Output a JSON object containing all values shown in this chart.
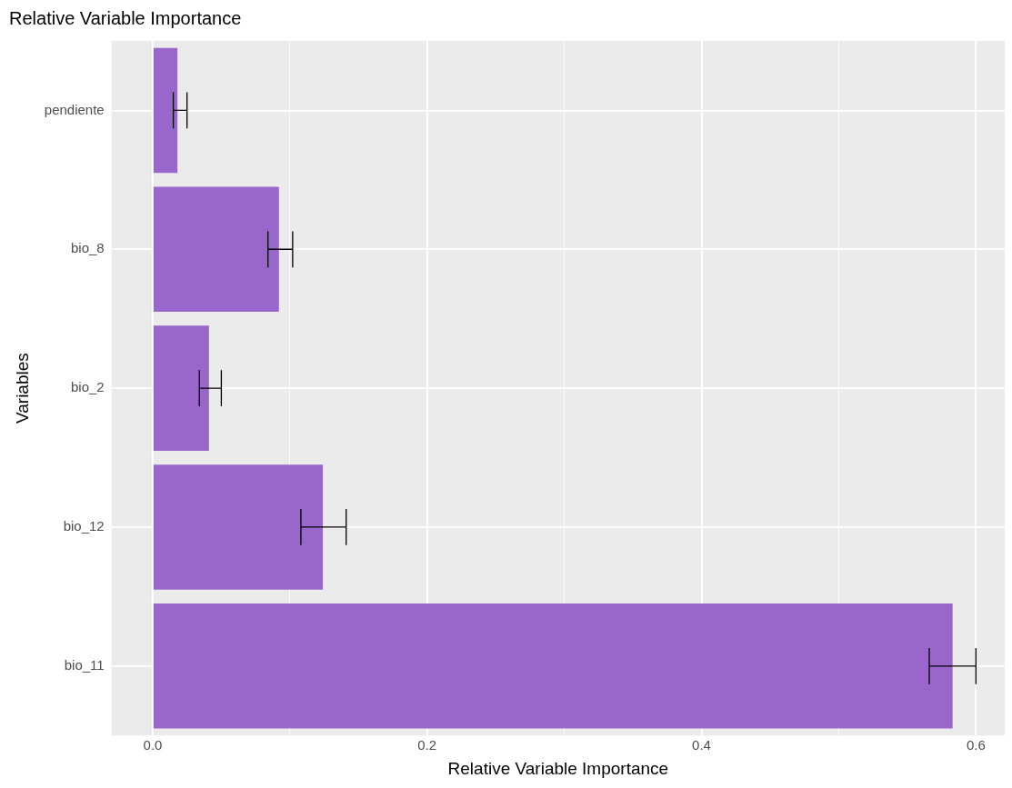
{
  "chart_data": {
    "type": "bar",
    "orientation": "horizontal",
    "title": "Relative Variable Importance",
    "xlabel": "Relative Variable Importance",
    "ylabel": "Variables",
    "categories": [
      "pendiente",
      "bio_8",
      "bio_2",
      "bio_12",
      "bio_11"
    ],
    "values": [
      0.018,
      0.092,
      0.041,
      0.124,
      0.583
    ],
    "errors": [
      [
        0.015,
        0.025
      ],
      [
        0.084,
        0.102
      ],
      [
        0.034,
        0.05
      ],
      [
        0.108,
        0.141
      ],
      [
        0.566,
        0.6
      ]
    ],
    "color": "#9966cc",
    "xlim": [
      -0.03,
      0.621
    ],
    "xticks": [
      {
        "value": 0,
        "label": "0.0"
      },
      {
        "value": 0.1,
        "label": null
      },
      {
        "value": 0.2,
        "label": "0.2"
      },
      {
        "value": 0.3,
        "label": null
      },
      {
        "value": 0.4,
        "label": "0.4"
      },
      {
        "value": 0.5,
        "label": null
      },
      {
        "value": 0.6,
        "label": "0.6"
      }
    ],
    "grid": true
  }
}
